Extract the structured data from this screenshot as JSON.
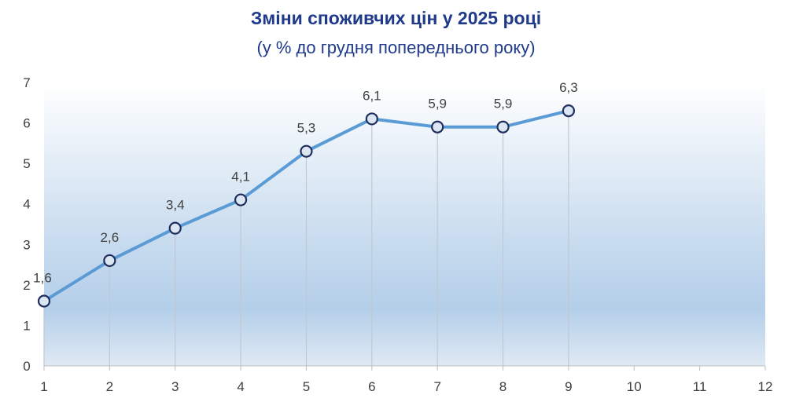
{
  "chart_data": {
    "type": "line",
    "title": "Зміни споживчих цін у 2025 році",
    "subtitle": "(у % до грудня попереднього року)",
    "x": [
      1,
      2,
      3,
      4,
      5,
      6,
      7,
      8,
      9
    ],
    "series": [
      {
        "values": [
          1.6,
          2.6,
          3.4,
          4.1,
          5.3,
          6.1,
          5.9,
          5.9,
          6.3
        ],
        "labels": [
          "1,6",
          "2,6",
          "3,4",
          "4,1",
          "5,3",
          "6,1",
          "5,9",
          "5,9",
          "6,3"
        ]
      }
    ],
    "xlim": [
      1,
      12
    ],
    "ylim": [
      0,
      7
    ],
    "xticks": [
      "1",
      "2",
      "3",
      "4",
      "5",
      "6",
      "7",
      "8",
      "9",
      "10",
      "11",
      "12"
    ],
    "yticks": [
      "0",
      "1",
      "2",
      "3",
      "4",
      "5",
      "6",
      "7"
    ],
    "grid": "vertical drop lines at data points",
    "line_color": "#5b9bd5",
    "marker_fill": "#dce6f2",
    "marker_edge": "#1f2d5c"
  }
}
